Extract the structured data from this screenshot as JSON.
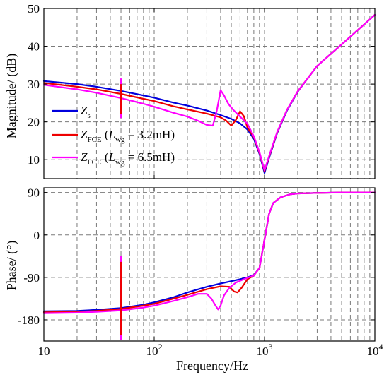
{
  "chart_data": [
    {
      "type": "line",
      "ylabel": "Magnitude/ (dB)",
      "xlabel": "",
      "xscale": "log",
      "xlim": [
        10,
        10000
      ],
      "ylim": [
        5,
        50
      ],
      "yticks": [
        "10",
        "20",
        "30",
        "40",
        "50"
      ],
      "legend": {
        "placement": "lower-left",
        "entries": [
          {
            "main": "Z",
            "sub": "s",
            "rest": ""
          },
          {
            "main": "Z",
            "sub": "FCE",
            "rest_pre": "(L",
            "rest_sub": "wg",
            "rest_post": " = 3.2mH)"
          },
          {
            "main": "Z",
            "sub": "FCE",
            "rest_pre": "(L",
            "rest_sub": "wg",
            "rest_post": " = 6.5mH)"
          }
        ]
      },
      "series": [
        {
          "name": "Zs",
          "color": "#0000dd",
          "x": [
            10,
            20,
            30,
            50,
            80,
            100,
            150,
            200,
            300,
            400,
            500,
            600,
            700,
            800,
            900,
            1000,
            1100,
            1300,
            1600,
            2000,
            3000,
            5000,
            10000
          ],
          "y": [
            30.8,
            30.0,
            29.3,
            28.2,
            27.0,
            26.4,
            25.1,
            24.3,
            23.0,
            21.8,
            20.8,
            19.6,
            18.0,
            15.5,
            11.5,
            6.5,
            10.5,
            17.0,
            23.0,
            28.0,
            34.8,
            40.5,
            48.3
          ]
        },
        {
          "name": "ZFCE (Lwg = 3.2mH)",
          "color": "#ee0000",
          "x": [
            10,
            20,
            30,
            50,
            80,
            100,
            150,
            200,
            300,
            400,
            450,
            500,
            550,
            600,
            650,
            700,
            800,
            900,
            1000,
            1100,
            1300,
            1600,
            2000,
            3000,
            5000,
            10000
          ],
          "y": [
            30.3,
            29.3,
            28.6,
            27.4,
            26.1,
            25.5,
            24.1,
            23.3,
            22.2,
            21.2,
            20.3,
            19.0,
            20.5,
            22.8,
            21.5,
            18.5,
            16.0,
            11.8,
            7.0,
            10.8,
            17.2,
            23.2,
            28.1,
            34.8,
            40.5,
            48.3
          ]
        },
        {
          "name": "ZFCE (Lwg = 6.5mH)",
          "color": "#ff00ff",
          "x": [
            10,
            20,
            30,
            50,
            80,
            100,
            150,
            200,
            250,
            300,
            340,
            370,
            400,
            430,
            470,
            520,
            600,
            700,
            800,
            900,
            1000,
            1100,
            1300,
            1600,
            2000,
            3000,
            5000,
            10000
          ],
          "y": [
            29.8,
            28.6,
            27.7,
            26.3,
            24.8,
            24.0,
            22.4,
            21.4,
            20.3,
            19.2,
            19.0,
            23.0,
            28.4,
            27.0,
            24.8,
            23.2,
            21.4,
            19.5,
            16.2,
            12.0,
            7.2,
            11.0,
            17.3,
            23.2,
            28.1,
            34.8,
            40.5,
            48.3
          ]
        }
      ],
      "spike": {
        "x": 50,
        "y_top": 31.5,
        "y_bottom": 21.0
      }
    },
    {
      "type": "line",
      "ylabel": "Phase/ (°)",
      "xlabel": "Frequency/Hz",
      "xscale": "log",
      "xlim": [
        10,
        10000
      ],
      "ylim": [
        -225,
        100
      ],
      "yticks": [
        "-180",
        "-90",
        "0",
        "90"
      ],
      "xticks": [
        "10",
        "10^2",
        "10^3",
        "10^4"
      ],
      "series": [
        {
          "name": "Zs",
          "color": "#0000dd",
          "x": [
            10,
            20,
            30,
            50,
            80,
            100,
            150,
            200,
            300,
            400,
            500,
            600,
            700,
            800,
            900,
            1000,
            1100,
            1200,
            1400,
            1700,
            2000,
            3000,
            5000,
            10000
          ],
          "y": [
            -162,
            -161,
            -159,
            -155,
            -148,
            -143,
            -132,
            -122,
            -110,
            -103,
            -98,
            -94,
            -90,
            -85,
            -70,
            -10,
            45,
            68,
            80,
            86,
            88,
            89,
            90,
            90
          ]
        },
        {
          "name": "ZFCE (Lwg = 3.2mH)",
          "color": "#ee0000",
          "x": [
            10,
            20,
            30,
            50,
            80,
            100,
            150,
            200,
            300,
            400,
            480,
            530,
            570,
            620,
            700,
            800,
            900,
            1000,
            1100,
            1200,
            1400,
            1700,
            2000,
            3000,
            5000,
            10000
          ],
          "y": [
            -164,
            -163,
            -161,
            -157,
            -150,
            -146,
            -135,
            -127,
            -115,
            -109,
            -110,
            -120,
            -122,
            -112,
            -94,
            -86,
            -70,
            -10,
            45,
            68,
            80,
            86,
            88,
            89,
            90,
            90
          ]
        },
        {
          "name": "ZFCE (Lwg = 6.5mH)",
          "color": "#ff00ff",
          "x": [
            10,
            20,
            30,
            50,
            80,
            100,
            150,
            200,
            250,
            300,
            330,
            360,
            380,
            400,
            430,
            480,
            550,
            650,
            800,
            900,
            1000,
            1100,
            1200,
            1400,
            1700,
            2000,
            3000,
            5000,
            10000
          ],
          "y": [
            -166,
            -165,
            -163,
            -160,
            -154,
            -150,
            -140,
            -132,
            -125,
            -125,
            -135,
            -150,
            -158,
            -150,
            -128,
            -112,
            -101,
            -94,
            -86,
            -70,
            -10,
            45,
            68,
            80,
            86,
            88,
            89,
            90,
            90
          ]
        }
      ],
      "spike": {
        "x": 50,
        "y_top": -45,
        "y_bottom": -222
      }
    }
  ],
  "colors": {
    "zs": "#0000dd",
    "fce32": "#ee0000",
    "fce65": "#ff00ff"
  }
}
